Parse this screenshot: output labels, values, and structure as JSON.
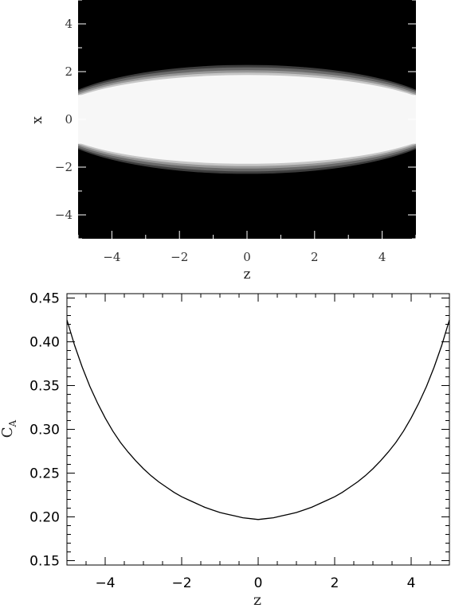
{
  "chart_data": [
    {
      "type": "heatmap",
      "xlabel": "z",
      "ylabel": "x",
      "xlim": [
        -5,
        5
      ],
      "ylim": [
        -5,
        5
      ],
      "xticks": [
        -4,
        -2,
        0,
        2,
        4
      ],
      "yticks": [
        -4,
        -2,
        0,
        2,
        4
      ],
      "xtick_labels": [
        "−4",
        "−2",
        "0",
        "2",
        "4"
      ],
      "ytick_labels": [
        "−4",
        "−2",
        "0",
        "2",
        "4"
      ],
      "background_color": "#000000",
      "levels": [
        {
          "half_width_center": 2.28,
          "half_width_edge": 1.24,
          "color": "#3d3d3d"
        },
        {
          "half_width_center": 2.18,
          "half_width_edge": 1.18,
          "color": "#6a6a6a"
        },
        {
          "half_width_center": 2.06,
          "half_width_edge": 1.1,
          "color": "#979797"
        },
        {
          "half_width_center": 1.96,
          "half_width_edge": 1.03,
          "color": "#c6c6c6"
        },
        {
          "half_width_center": 1.86,
          "half_width_edge": 0.97,
          "color": "#f7f7f7"
        }
      ]
    },
    {
      "type": "line",
      "xlabel": "z",
      "ylabel": "C",
      "ylabel_sub": "A",
      "xlim": [
        -5,
        5
      ],
      "ylim": [
        0.145,
        0.455
      ],
      "xticks": [
        -4,
        -2,
        0,
        2,
        4
      ],
      "xtick_labels": [
        "−4",
        "−2",
        "0",
        "2",
        "4"
      ],
      "yticks": [
        0.15,
        0.2,
        0.25,
        0.3,
        0.35,
        0.4,
        0.45
      ],
      "ytick_labels": [
        "0.15",
        "0.20",
        "0.25",
        "0.30",
        "0.35",
        "0.40",
        "0.45"
      ],
      "series": [
        {
          "x": [
            -5.0,
            -4.8,
            -4.6,
            -4.4,
            -4.2,
            -4.0,
            -3.8,
            -3.6,
            -3.4,
            -3.2,
            -3.0,
            -2.8,
            -2.6,
            -2.4,
            -2.2,
            -2.0,
            -1.8,
            -1.6,
            -1.4,
            -1.2,
            -1.0,
            -0.8,
            -0.6,
            -0.4,
            -0.2,
            0.0,
            0.2,
            0.4,
            0.6,
            0.8,
            1.0,
            1.2,
            1.4,
            1.6,
            1.8,
            2.0,
            2.2,
            2.4,
            2.6,
            2.8,
            3.0,
            3.2,
            3.4,
            3.6,
            3.8,
            4.0,
            4.2,
            4.4,
            4.6,
            4.8,
            5.0
          ],
          "y": [
            0.425,
            0.396,
            0.371,
            0.349,
            0.33,
            0.313,
            0.298,
            0.285,
            0.274,
            0.264,
            0.255,
            0.247,
            0.24,
            0.234,
            0.228,
            0.223,
            0.219,
            0.215,
            0.211,
            0.208,
            0.205,
            0.203,
            0.201,
            0.199,
            0.198,
            0.197,
            0.198,
            0.199,
            0.201,
            0.203,
            0.205,
            0.208,
            0.211,
            0.215,
            0.219,
            0.223,
            0.228,
            0.234,
            0.24,
            0.247,
            0.255,
            0.264,
            0.274,
            0.285,
            0.298,
            0.313,
            0.33,
            0.349,
            0.371,
            0.396,
            0.425
          ],
          "color": "#000000"
        }
      ]
    }
  ]
}
